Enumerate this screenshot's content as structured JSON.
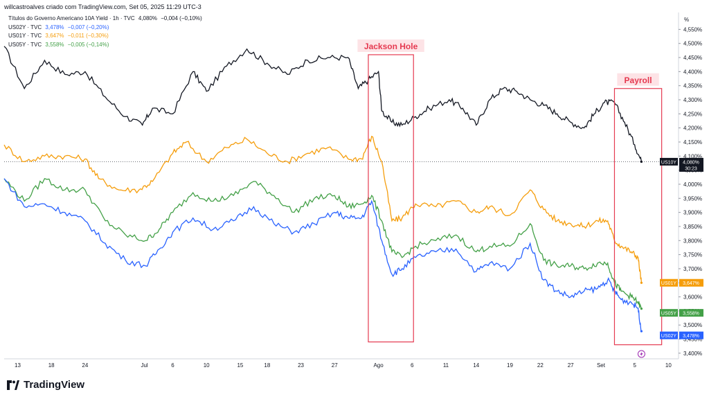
{
  "header": {
    "attribution": "willcastroalves criado com TradingView.com, Set 05, 2025 11:29 UTC-3"
  },
  "legend": [
    {
      "label": "Títulos do Governo Americano 10A Yield · 1h · TVC",
      "value": "4,080%",
      "change": "−0,004 (−0,10%)",
      "color": "#131722"
    },
    {
      "label": "US02Y · TVC",
      "value": "3,478%",
      "change": "−0,007 (−0,20%)",
      "color": "#2962ff"
    },
    {
      "label": "US01Y · TVC",
      "value": "3,647%",
      "change": "−0,011 (−0,30%)",
      "color": "#f59d0b"
    },
    {
      "label": "US05Y · TVC",
      "value": "3,558%",
      "change": "−0,005 (−0,14%)",
      "color": "#43a047"
    }
  ],
  "brand": "TradingView",
  "chart_data": {
    "type": "line",
    "ylabel": "%",
    "ylim": [
      3.38,
      4.61
    ],
    "y_ticks": [
      "4,550%",
      "4,500%",
      "4,450%",
      "4,400%",
      "4,350%",
      "4,300%",
      "4,250%",
      "4,200%",
      "4,150%",
      "4,100%",
      "4,050%",
      "4,000%",
      "3,950%",
      "3,900%",
      "3,850%",
      "3,800%",
      "3,750%",
      "3,700%",
      "3,650%",
      "3,600%",
      "3,550%",
      "3,500%",
      "3,450%",
      "3,400%"
    ],
    "x_ticks": [
      "13",
      "18",
      "24",
      "Jul",
      "6",
      "10",
      "15",
      "18",
      "23",
      "27",
      "Ago",
      "6",
      "11",
      "14",
      "19",
      "22",
      "27",
      "Set",
      "5",
      "10"
    ],
    "x_tick_pos": [
      0.02,
      0.07,
      0.12,
      0.208,
      0.25,
      0.3,
      0.35,
      0.39,
      0.44,
      0.49,
      0.555,
      0.605,
      0.655,
      0.7,
      0.75,
      0.795,
      0.84,
      0.885,
      0.935,
      0.985
    ],
    "annotations": [
      {
        "label": "Jackson Hole",
        "x_start": 0.54,
        "x_end": 0.607,
        "y_top": 4.46,
        "y_bottom": 3.44
      },
      {
        "label": "Payroll",
        "x_start": 0.905,
        "x_end": 0.975,
        "y_top": 4.34,
        "y_bottom": 3.43
      }
    ],
    "reference_line": 4.08,
    "last_x": 0.945,
    "series": [
      {
        "name": "US10Y",
        "color": "#131722",
        "last_label": "4,080%",
        "countdown": "30:23",
        "x": [
          0,
          0.03,
          0.06,
          0.09,
          0.12,
          0.15,
          0.18,
          0.205,
          0.22,
          0.25,
          0.28,
          0.3,
          0.33,
          0.36,
          0.39,
          0.42,
          0.45,
          0.48,
          0.51,
          0.525,
          0.54,
          0.555,
          0.56,
          0.575,
          0.59,
          0.61,
          0.63,
          0.66,
          0.68,
          0.7,
          0.72,
          0.74,
          0.76,
          0.78,
          0.8,
          0.82,
          0.84,
          0.86,
          0.875,
          0.89,
          0.905,
          0.92,
          0.935,
          0.945
        ],
        "values": [
          4.49,
          4.34,
          4.44,
          4.39,
          4.4,
          4.31,
          4.24,
          4.21,
          4.27,
          4.25,
          4.4,
          4.33,
          4.42,
          4.48,
          4.43,
          4.39,
          4.44,
          4.45,
          4.45,
          4.34,
          4.37,
          4.4,
          4.26,
          4.22,
          4.21,
          4.24,
          4.27,
          4.3,
          4.27,
          4.21,
          4.3,
          4.34,
          4.33,
          4.3,
          4.28,
          4.25,
          4.22,
          4.2,
          4.25,
          4.29,
          4.29,
          4.22,
          4.14,
          4.08
        ]
      },
      {
        "name": "US01Y",
        "color": "#f59d0b",
        "last_label": "3,647%",
        "x": [
          0,
          0.03,
          0.06,
          0.09,
          0.12,
          0.14,
          0.17,
          0.2,
          0.22,
          0.25,
          0.27,
          0.3,
          0.33,
          0.36,
          0.39,
          0.42,
          0.45,
          0.48,
          0.51,
          0.53,
          0.545,
          0.56,
          0.575,
          0.59,
          0.61,
          0.64,
          0.67,
          0.7,
          0.72,
          0.75,
          0.78,
          0.8,
          0.82,
          0.84,
          0.86,
          0.88,
          0.895,
          0.905,
          0.915,
          0.93,
          0.94,
          0.945
        ],
        "values": [
          4.14,
          4.08,
          4.1,
          4.1,
          4.09,
          4.02,
          3.98,
          3.98,
          4.01,
          4.11,
          4.15,
          4.08,
          4.13,
          4.16,
          4.11,
          4.08,
          4.11,
          4.13,
          4.09,
          4.09,
          4.17,
          4.08,
          3.87,
          3.88,
          3.93,
          3.92,
          3.94,
          3.9,
          3.92,
          3.89,
          3.98,
          3.91,
          3.87,
          3.86,
          3.85,
          3.87,
          3.87,
          3.8,
          3.78,
          3.76,
          3.74,
          3.65
        ]
      },
      {
        "name": "US05Y",
        "color": "#43a047",
        "last_label": "3,558%",
        "x": [
          0,
          0.03,
          0.06,
          0.09,
          0.12,
          0.15,
          0.18,
          0.21,
          0.23,
          0.25,
          0.28,
          0.31,
          0.34,
          0.37,
          0.4,
          0.43,
          0.46,
          0.49,
          0.51,
          0.53,
          0.545,
          0.56,
          0.575,
          0.59,
          0.61,
          0.64,
          0.67,
          0.7,
          0.72,
          0.75,
          0.78,
          0.8,
          0.82,
          0.84,
          0.86,
          0.88,
          0.895,
          0.905,
          0.915,
          0.93,
          0.94,
          0.945
        ],
        "values": [
          4.02,
          3.94,
          4.02,
          3.98,
          3.98,
          3.87,
          3.82,
          3.8,
          3.84,
          3.9,
          3.97,
          3.94,
          3.96,
          4.01,
          3.96,
          3.9,
          3.95,
          3.96,
          3.92,
          3.93,
          3.96,
          3.87,
          3.76,
          3.74,
          3.78,
          3.8,
          3.82,
          3.76,
          3.78,
          3.78,
          3.86,
          3.73,
          3.71,
          3.71,
          3.7,
          3.72,
          3.72,
          3.65,
          3.62,
          3.6,
          3.58,
          3.558
        ]
      },
      {
        "name": "US02Y",
        "color": "#2962ff",
        "last_label": "3,478%",
        "x": [
          0,
          0.03,
          0.06,
          0.09,
          0.12,
          0.15,
          0.18,
          0.21,
          0.23,
          0.25,
          0.28,
          0.31,
          0.34,
          0.37,
          0.4,
          0.43,
          0.46,
          0.49,
          0.51,
          0.53,
          0.545,
          0.56,
          0.575,
          0.59,
          0.61,
          0.64,
          0.67,
          0.7,
          0.72,
          0.75,
          0.78,
          0.8,
          0.82,
          0.84,
          0.86,
          0.88,
          0.895,
          0.905,
          0.915,
          0.93,
          0.94,
          0.945
        ],
        "values": [
          4.02,
          3.92,
          3.93,
          3.9,
          3.87,
          3.79,
          3.73,
          3.71,
          3.77,
          3.83,
          3.88,
          3.84,
          3.87,
          3.92,
          3.86,
          3.83,
          3.86,
          3.9,
          3.88,
          3.88,
          3.94,
          3.8,
          3.68,
          3.7,
          3.74,
          3.76,
          3.77,
          3.69,
          3.72,
          3.7,
          3.79,
          3.66,
          3.62,
          3.6,
          3.62,
          3.63,
          3.66,
          3.62,
          3.59,
          3.58,
          3.56,
          3.478
        ]
      }
    ]
  }
}
